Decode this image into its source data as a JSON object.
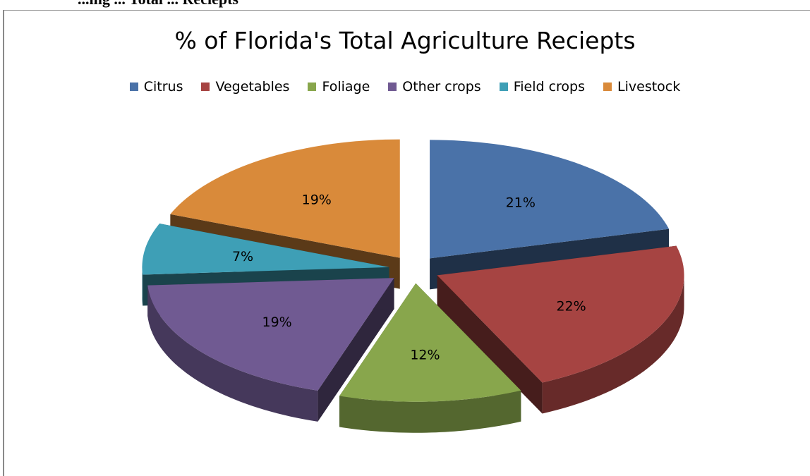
{
  "page": {
    "header_text": "...ing ... Total ... Reciepts"
  },
  "colors": {
    "Citrus": "#4a72a8",
    "Vegetables": "#a64442",
    "Foliage": "#88a64c",
    "Other crops": "#705a92",
    "Field crops": "#3e9fb6",
    "Livestock": "#d98a3a"
  },
  "chart_data": {
    "type": "pie",
    "style": "3d-exploded",
    "title": "% of Florida's Total Agriculture Reciepts",
    "legend_position": "top",
    "categories": [
      "Citrus",
      "Vegetables",
      "Foliage",
      "Other crops",
      "Field crops",
      "Livestock"
    ],
    "values": [
      21,
      22,
      12,
      19,
      7,
      19
    ],
    "data_labels": [
      "21%",
      "22%",
      "12%",
      "19%",
      "7%",
      "19%"
    ]
  }
}
